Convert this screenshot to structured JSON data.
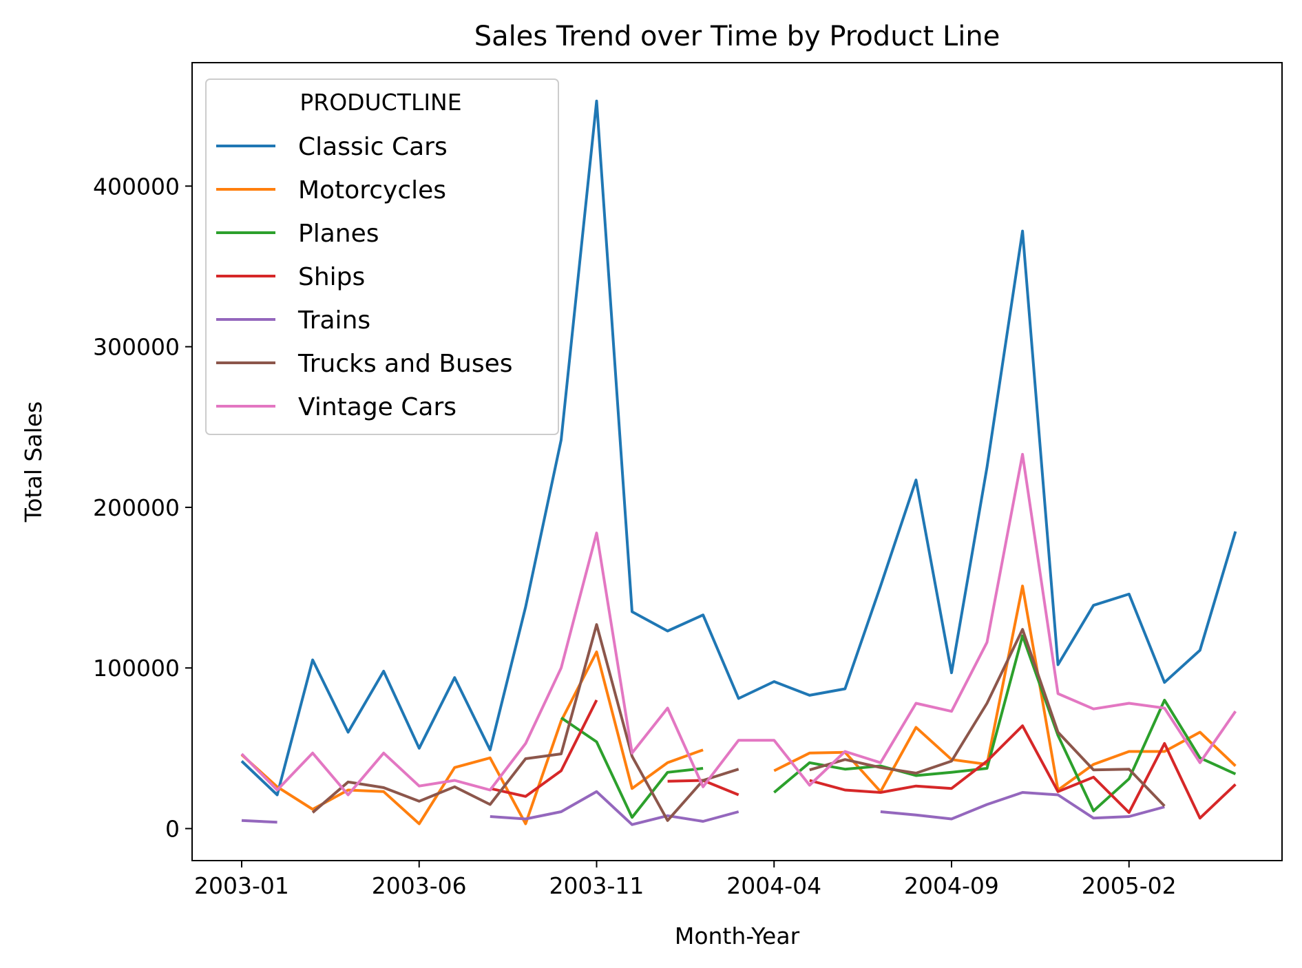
{
  "chart_data": {
    "type": "line",
    "title": "Sales Trend over Time by Product Line",
    "xlabel": "Month-Year",
    "ylabel": "Total Sales",
    "x": [
      "2003-01",
      "2003-02",
      "2003-03",
      "2003-04",
      "2003-05",
      "2003-06",
      "2003-07",
      "2003-08",
      "2003-09",
      "2003-10",
      "2003-11",
      "2003-12",
      "2004-01",
      "2004-02",
      "2004-03",
      "2004-04",
      "2004-05",
      "2004-06",
      "2004-07",
      "2004-08",
      "2004-09",
      "2004-10",
      "2004-11",
      "2004-12",
      "2005-01",
      "2005-02",
      "2005-03",
      "2005-04",
      "2005-05"
    ],
    "x_tick_labels": [
      "2003-01",
      "2003-06",
      "2003-11",
      "2004-04",
      "2004-09",
      "2005-02"
    ],
    "y_tick_values": [
      0,
      100000,
      200000,
      300000,
      400000
    ],
    "y_tick_labels": [
      "0",
      "100000",
      "200000",
      "300000",
      "400000"
    ],
    "ylim": [
      -20000,
      478000
    ],
    "grid": false,
    "legend": {
      "title": "PRODUCTLINE",
      "placement": "upper-left"
    },
    "series": [
      {
        "name": "Classic Cars",
        "color": "#1f77b4",
        "values": [
          42000,
          21000,
          105000,
          60000,
          98000,
          50000,
          94000,
          49000,
          138000,
          242000,
          453000,
          135000,
          123000,
          133000,
          81000,
          91500,
          83000,
          87000,
          151000,
          217000,
          97000,
          225000,
          372000,
          102000,
          139000,
          146000,
          91000,
          111000,
          185000
        ]
      },
      {
        "name": "Motorcycles",
        "color": "#ff7f0e",
        "values": [
          46000,
          26000,
          12000,
          24000,
          23000,
          3000,
          38000,
          44000,
          3000,
          67000,
          110000,
          25000,
          41000,
          49000,
          null,
          36000,
          47000,
          47500,
          23000,
          63000,
          43000,
          40000,
          151000,
          24000,
          40000,
          48000,
          48000,
          60000,
          39000
        ]
      },
      {
        "name": "Planes",
        "color": "#2ca02c",
        "values": [
          null,
          null,
          null,
          null,
          null,
          null,
          null,
          null,
          null,
          69000,
          54000,
          7000,
          35000,
          37500,
          null,
          22500,
          41000,
          37000,
          39000,
          33000,
          35000,
          37500,
          120000,
          58000,
          11000,
          31000,
          80000,
          44000,
          34000
        ]
      },
      {
        "name": "Ships",
        "color": "#d62728",
        "values": [
          null,
          null,
          null,
          null,
          null,
          null,
          null,
          25000,
          20000,
          36000,
          80000,
          null,
          29500,
          30000,
          21000,
          null,
          30000,
          24000,
          22500,
          26500,
          25000,
          42000,
          64000,
          23000,
          32000,
          10000,
          53000,
          6500,
          27500
        ]
      },
      {
        "name": "Trains",
        "color": "#9467bd",
        "values": [
          5000,
          4000,
          null,
          null,
          null,
          null,
          null,
          7500,
          6000,
          10500,
          23000,
          2500,
          8000,
          4500,
          10500,
          null,
          null,
          null,
          10500,
          8500,
          6000,
          15000,
          22500,
          21000,
          6500,
          7500,
          13500,
          null,
          null
        ]
      },
      {
        "name": "Trucks and Buses",
        "color": "#8c564b",
        "values": [
          null,
          null,
          10000,
          29000,
          25500,
          17000,
          26000,
          15000,
          43500,
          46500,
          127000,
          45000,
          5000,
          30000,
          37000,
          null,
          36500,
          43000,
          38000,
          34500,
          42000,
          78000,
          124000,
          60000,
          36500,
          37000,
          14000,
          null,
          null
        ]
      },
      {
        "name": "Vintage Cars",
        "color": "#e377c2",
        "values": [
          46500,
          24000,
          47000,
          21000,
          47000,
          26500,
          30000,
          24000,
          53000,
          100000,
          184000,
          47000,
          75000,
          26000,
          55000,
          55000,
          27000,
          48000,
          41000,
          78000,
          73000,
          116000,
          233000,
          84000,
          74500,
          78000,
          75000,
          41000,
          73000
        ]
      }
    ]
  }
}
